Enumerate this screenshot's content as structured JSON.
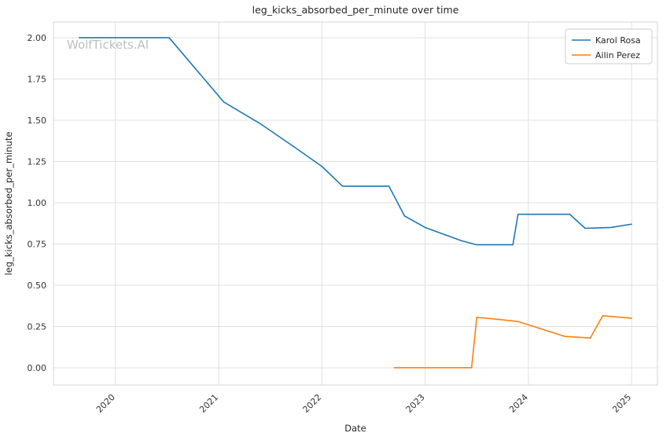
{
  "chart_data": {
    "type": "line",
    "title": "leg_kicks_absorbed_per_minute over time",
    "xlabel": "Date",
    "ylabel": "leg_kicks_absorbed_per_minute",
    "watermark": "WolfTickets.AI",
    "grid": true,
    "legend_position": "top-right",
    "xlim": [
      2019.4,
      2025.25
    ],
    "ylim": [
      -0.105,
      2.095
    ],
    "x_ticks": [
      2020,
      2021,
      2022,
      2023,
      2024,
      2025
    ],
    "y_ticks": [
      0.0,
      0.25,
      0.5,
      0.75,
      1.0,
      1.25,
      1.5,
      1.75,
      2.0
    ],
    "series": [
      {
        "name": "Karol Rosa",
        "color": "#1f77b4",
        "points": [
          [
            2019.65,
            2.0
          ],
          [
            2020.52,
            2.0
          ],
          [
            2021.05,
            1.61
          ],
          [
            2021.4,
            1.48
          ],
          [
            2021.75,
            1.33
          ],
          [
            2022.0,
            1.22
          ],
          [
            2022.2,
            1.1
          ],
          [
            2022.65,
            1.1
          ],
          [
            2022.8,
            0.92
          ],
          [
            2023.0,
            0.85
          ],
          [
            2023.35,
            0.77
          ],
          [
            2023.5,
            0.745
          ],
          [
            2023.85,
            0.745
          ],
          [
            2023.9,
            0.93
          ],
          [
            2024.4,
            0.93
          ],
          [
            2024.55,
            0.845
          ],
          [
            2024.8,
            0.85
          ],
          [
            2025.0,
            0.87
          ]
        ]
      },
      {
        "name": "Ailin Perez",
        "color": "#ff7f0e",
        "points": [
          [
            2022.7,
            0.0
          ],
          [
            2023.45,
            0.0
          ],
          [
            2023.5,
            0.305
          ],
          [
            2023.6,
            0.3
          ],
          [
            2023.9,
            0.28
          ],
          [
            2024.35,
            0.19
          ],
          [
            2024.6,
            0.18
          ],
          [
            2024.72,
            0.315
          ],
          [
            2025.0,
            0.3
          ]
        ]
      }
    ]
  }
}
